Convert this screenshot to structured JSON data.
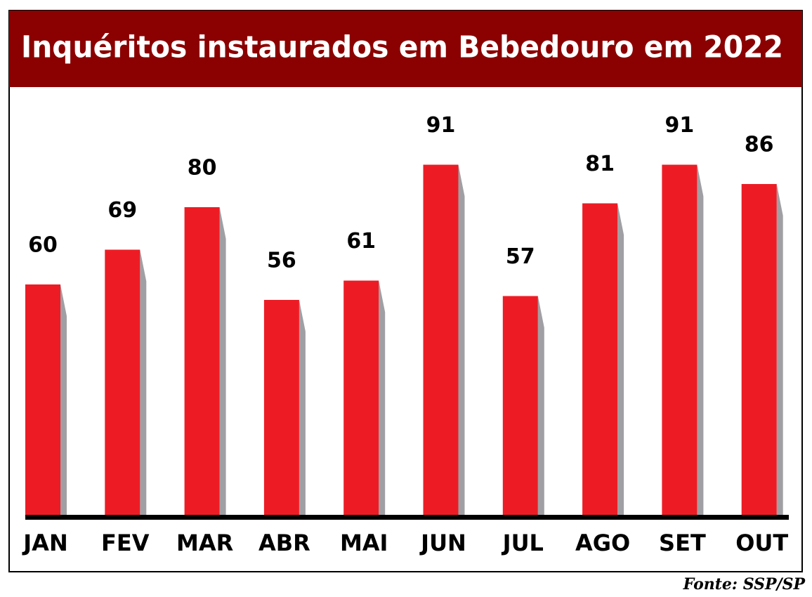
{
  "chart_data": {
    "type": "bar",
    "title": "Inquéritos instaurados em Bebedouro em 2022",
    "categories": [
      "JAN",
      "FEV",
      "MAR",
      "ABR",
      "MAI",
      "JUN",
      "JUL",
      "AGO",
      "SET",
      "OUT"
    ],
    "values": [
      60,
      69,
      80,
      56,
      61,
      91,
      57,
      81,
      91,
      86
    ],
    "color": "#ed1c24",
    "source": "Fonte: SSP/SP"
  }
}
